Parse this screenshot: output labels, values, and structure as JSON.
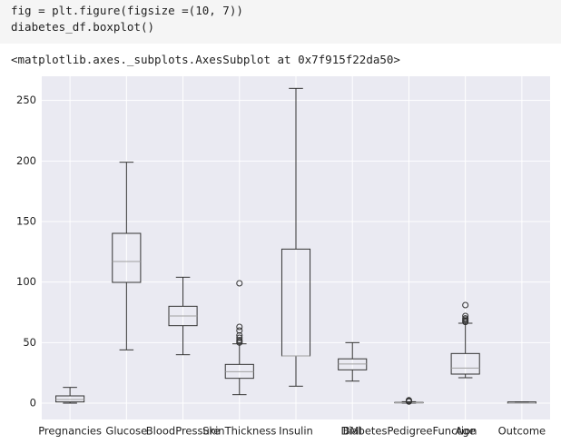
{
  "code": {
    "lines": [
      "fig = plt.figure(figsize =(10, 7))",
      "diabetes_df.boxplot()"
    ]
  },
  "output": {
    "text": "<matplotlib.axes._subplots.AxesSubplot at 0x7f915f22da50>"
  },
  "chart_data": {
    "type": "box",
    "categories": [
      "Pregnancies",
      "Glucose",
      "BloodPressure",
      "SkinThickness",
      "Insulin",
      "BMI",
      "DiabetesPedigreeFunction",
      "Age",
      "Outcome"
    ],
    "boxes": [
      {
        "whislo": 0,
        "q1": 1,
        "med": 3,
        "q3": 6,
        "whishi": 13,
        "fliers": []
      },
      {
        "whislo": 44,
        "q1": 99.75,
        "med": 117,
        "q3": 140.25,
        "whishi": 199,
        "fliers": []
      },
      {
        "whislo": 40,
        "q1": 64,
        "med": 72,
        "q3": 80,
        "whishi": 104,
        "fliers": []
      },
      {
        "whislo": 7,
        "q1": 20.5,
        "med": 26,
        "q3": 32,
        "whishi": 49,
        "fliers": [
          50,
          51,
          52,
          54,
          56,
          60,
          63,
          99
        ]
      },
      {
        "whislo": 14,
        "q1": 39,
        "med": 39,
        "q3": 127.25,
        "whishi": 260,
        "fliers": []
      },
      {
        "whislo": 18.2,
        "q1": 27.5,
        "med": 32.3,
        "q3": 36.6,
        "whishi": 50,
        "fliers": []
      },
      {
        "whislo": 0.078,
        "q1": 0.24,
        "med": 0.37,
        "q3": 0.63,
        "whishi": 1.19,
        "fliers": [
          1.3,
          1.6,
          1.9,
          2.4
        ]
      },
      {
        "whislo": 21,
        "q1": 24,
        "med": 29,
        "q3": 41,
        "whishi": 66,
        "fliers": [
          67,
          68,
          69,
          70,
          72,
          81
        ]
      },
      {
        "whislo": 0,
        "q1": 0,
        "med": 0,
        "q3": 1,
        "whishi": 1,
        "fliers": []
      }
    ],
    "ylim": [
      -13.5,
      270
    ],
    "yticks": [
      0,
      50,
      100,
      150,
      200,
      250
    ],
    "grid": true,
    "box_color": "#333333",
    "median_color": "#a0a0a0",
    "background": "#eaeaf2"
  }
}
